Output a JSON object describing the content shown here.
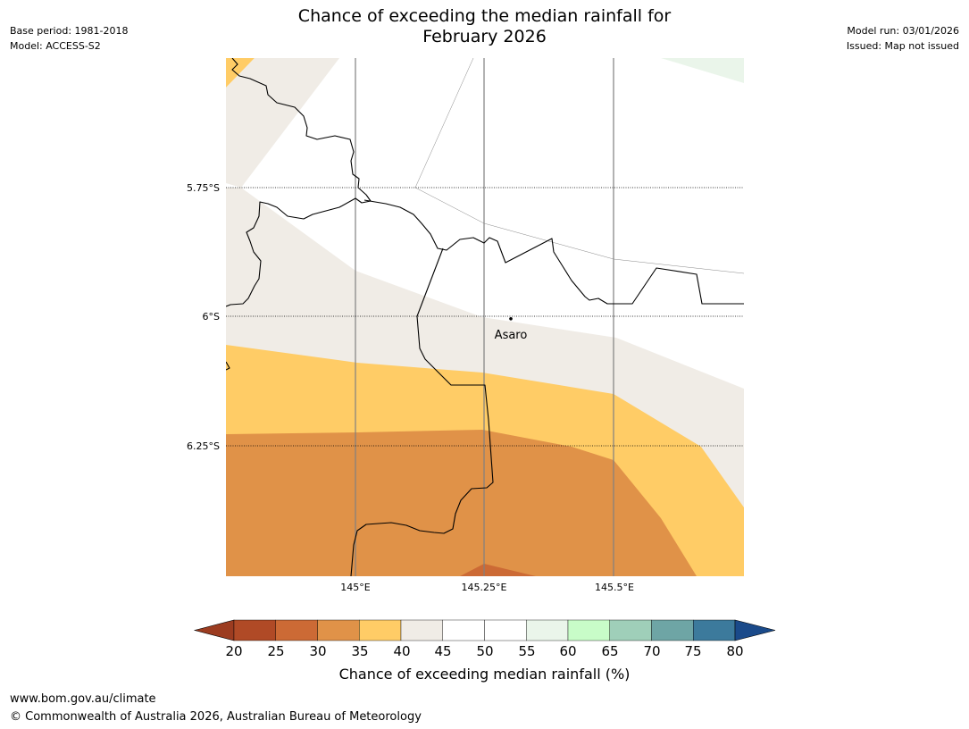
{
  "header": {
    "title_line1": "Chance of exceeding the median rainfall for",
    "title_line2": "February 2026",
    "base_period": "Base period: 1981-2018",
    "model": "Model: ACCESS-S2",
    "model_run": "Model run: 03/01/2026",
    "issued": "Issued: Map not issued"
  },
  "map": {
    "lat_labels": [
      "5.75°S",
      "6°S",
      "6.25°S"
    ],
    "lon_labels": [
      "145°E",
      "145.25°E",
      "145.5°E"
    ],
    "place": {
      "name": "Asaro",
      "lon": 145.3,
      "lat": -6.01
    },
    "region": {
      "lon_min": 144.75,
      "lon_max": 145.75,
      "lat_min": -6.5,
      "lat_max": -5.5
    }
  },
  "legend": {
    "label": "Chance of exceeding median rainfall (%)",
    "ticks": [
      "20",
      "25",
      "30",
      "35",
      "40",
      "45",
      "50",
      "55",
      "60",
      "65",
      "70",
      "75",
      "80"
    ],
    "colors": {
      "below_20": "#9c3c20",
      "20-25": "#b04a26",
      "25-30": "#cc6a35",
      "30-35": "#e09248",
      "35-40": "#ffcc66",
      "40-45": "#f0ece6",
      "45-50": "#ffffff",
      "50-55": "#ffffff",
      "55-60": "#eaf5ea",
      "60-65": "#c8fcc8",
      "65-70": "#9fcfb9",
      "70-75": "#6ea5a5",
      "75-80": "#3c7a9c",
      "above_80": "#1a4a8a"
    }
  },
  "footer": {
    "url": "www.bom.gov.au/climate",
    "copyright": "© Commonwealth of Australia 2026, Australian Bureau of Meteorology"
  }
}
